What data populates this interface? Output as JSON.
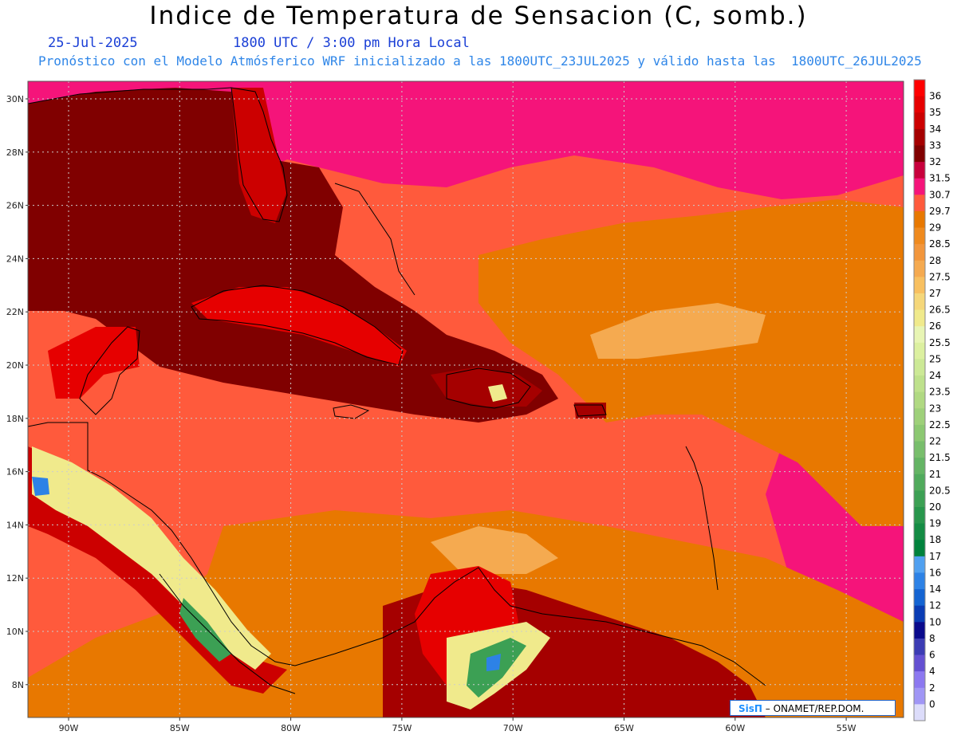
{
  "header": {
    "title": "Indice de Temperatura de Sensacion (C, somb.)",
    "date": "25-Jul-2025",
    "time": "1800 UTC / 3:00 pm Hora Local",
    "model_info": "Pronóstico con el Modelo Atmósferico WRF inicializado a las 1800UTC_23JUL2025 y válido hasta las  1800UTC_26JUL2025"
  },
  "map": {
    "lat_labels": [
      "30N",
      "28N",
      "26N",
      "24N",
      "22N",
      "20N",
      "18N",
      "16N",
      "14N",
      "12N",
      "10N",
      "8N"
    ],
    "lon_labels": [
      "90W",
      "85W",
      "80W",
      "75W",
      "70W",
      "65W",
      "60W",
      "55W"
    ],
    "base_color": "#ff5a3c"
  },
  "colorbar": {
    "levels": [
      {
        "label": "36",
        "color": "#ff0000"
      },
      {
        "label": "35",
        "color": "#e60000"
      },
      {
        "label": "34",
        "color": "#cc0000"
      },
      {
        "label": "33",
        "color": "#a50000"
      },
      {
        "label": "32",
        "color": "#800000"
      },
      {
        "label": "31.5",
        "color": "#c8003c"
      },
      {
        "label": "30.7",
        "color": "#f5147a"
      },
      {
        "label": "29.7",
        "color": "#ff5a3c"
      },
      {
        "label": "29",
        "color": "#e87800"
      },
      {
        "label": "28.5",
        "color": "#ef8a1e"
      },
      {
        "label": "28",
        "color": "#f2963c"
      },
      {
        "label": "27.5",
        "color": "#f5aa50"
      },
      {
        "label": "27",
        "color": "#f8c060"
      },
      {
        "label": "26.5",
        "color": "#f5d77a"
      },
      {
        "label": "26",
        "color": "#f0ea8c"
      },
      {
        "label": "25.5",
        "color": "#e8f5b4"
      },
      {
        "label": "25",
        "color": "#dcf0a0"
      },
      {
        "label": "24",
        "color": "#cce996"
      },
      {
        "label": "23.5",
        "color": "#bee18c"
      },
      {
        "label": "23",
        "color": "#b0d982"
      },
      {
        "label": "22.5",
        "color": "#9ed07a"
      },
      {
        "label": "22",
        "color": "#8cc872"
      },
      {
        "label": "21.5",
        "color": "#78be6c"
      },
      {
        "label": "21",
        "color": "#64b464"
      },
      {
        "label": "20.5",
        "color": "#50aa5c"
      },
      {
        "label": "20",
        "color": "#3ca054"
      },
      {
        "label": "19",
        "color": "#28964c"
      },
      {
        "label": "18",
        "color": "#148c44"
      },
      {
        "label": "17",
        "color": "#00823c"
      },
      {
        "label": "16",
        "color": "#50a0f0"
      },
      {
        "label": "14",
        "color": "#2d82e6"
      },
      {
        "label": "12",
        "color": "#1464d2"
      },
      {
        "label": "10",
        "color": "#0a3cb4"
      },
      {
        "label": "8",
        "color": "#0a0a8c"
      },
      {
        "label": "6",
        "color": "#3c3cb4"
      },
      {
        "label": "4",
        "color": "#6450d2"
      },
      {
        "label": "2",
        "color": "#8c78f0"
      },
      {
        "label": "0",
        "color": "#a096f5"
      },
      {
        "label": "",
        "color": "#dcdcfa"
      }
    ]
  },
  "credit": {
    "brand": "SisΠ",
    "text": " – ONAMET/REP.DOM."
  }
}
